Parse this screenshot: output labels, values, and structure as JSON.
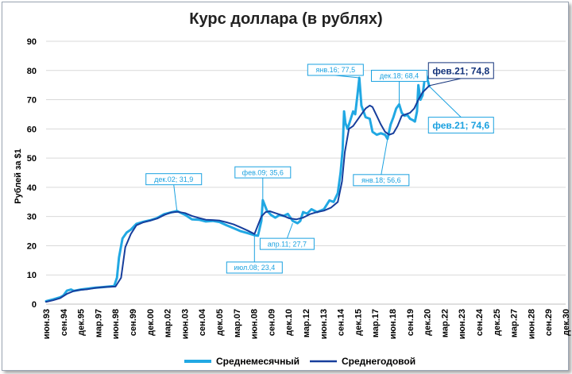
{
  "chart_data": {
    "type": "line",
    "title": "Курс доллара (в рублях)",
    "ylabel": "Рублей за $1",
    "xlabel": "",
    "ylim": [
      0,
      90
    ],
    "yticks": [
      0,
      10,
      20,
      30,
      40,
      50,
      60,
      70,
      80,
      90
    ],
    "xlim": [
      1993.5,
      2030.9
    ],
    "xtick_labels": [
      "июн.93",
      "сен.94",
      "дек.95",
      "мар.97",
      "июн.98",
      "сен.99",
      "дек.00",
      "мар.02",
      "июн.03",
      "сен.04",
      "дек.05",
      "мар.07",
      "июн.08",
      "сен.09",
      "дек.10",
      "мар.12",
      "июн.13",
      "сен.14",
      "дек.15",
      "мар.17",
      "июн.18",
      "сен.19",
      "дек.20",
      "мар.22",
      "июн.23",
      "сен.24",
      "дек.25",
      "мар.27",
      "июн.28",
      "сен.29",
      "дек.30"
    ],
    "grid": true,
    "legend": "bottom",
    "series": [
      {
        "name": "Среднемесячный",
        "color": "#21a8e3",
        "x": [
          1993.5,
          1994.0,
          1994.5,
          1994.75,
          1995.0,
          1995.3,
          1995.5,
          1996.0,
          1996.5,
          1997.0,
          1997.5,
          1998.0,
          1998.4,
          1998.6,
          1998.75,
          1999.0,
          1999.3,
          1999.6,
          2000.0,
          2000.5,
          2001.0,
          2001.5,
          2002.0,
          2002.5,
          2002.92,
          2003.5,
          2004.0,
          2004.5,
          2005.0,
          2005.5,
          2006.0,
          2006.5,
          2007.0,
          2007.5,
          2008.0,
          2008.5,
          2008.75,
          2009.0,
          2009.1,
          2009.4,
          2009.7,
          2010.0,
          2010.3,
          2010.6,
          2010.9,
          2011.25,
          2011.6,
          2011.8,
          2012.0,
          2012.3,
          2012.6,
          2013.0,
          2013.5,
          2013.9,
          2014.2,
          2014.5,
          2014.7,
          2014.85,
          2014.95,
          2015.05,
          2015.2,
          2015.4,
          2015.6,
          2015.75,
          2015.92,
          2016.05,
          2016.2,
          2016.5,
          2016.8,
          2017.0,
          2017.3,
          2017.6,
          2017.9,
          2018.08,
          2018.3,
          2018.5,
          2018.7,
          2018.92,
          2019.1,
          2019.3,
          2019.5,
          2019.7,
          2019.9,
          2020.05,
          2020.2,
          2020.3,
          2020.45,
          2020.6,
          2020.75,
          2020.9,
          2021.08
        ],
        "values": [
          1.0,
          1.6,
          2.3,
          3.0,
          4.6,
          5.0,
          4.5,
          5.0,
          5.3,
          5.6,
          5.8,
          6.0,
          6.2,
          9.0,
          16.0,
          22.5,
          24.5,
          25.5,
          27.5,
          28.2,
          28.7,
          29.5,
          30.8,
          31.4,
          31.9,
          30.6,
          29.0,
          28.9,
          28.3,
          28.5,
          28.1,
          27.0,
          26.0,
          25.0,
          24.3,
          23.6,
          23.4,
          28.5,
          35.6,
          32.0,
          30.5,
          29.6,
          30.5,
          30.2,
          30.9,
          28.5,
          27.7,
          28.5,
          31.5,
          31.0,
          32.5,
          31.5,
          32.5,
          35.5,
          35.0,
          38.0,
          45.0,
          53.0,
          66.0,
          62.0,
          60.0,
          63.0,
          66.0,
          65.0,
          72.0,
          77.5,
          68.0,
          64.0,
          63.5,
          59.0,
          58.0,
          58.5,
          58.0,
          56.6,
          61.5,
          64.0,
          67.0,
          68.4,
          65.5,
          64.5,
          64.8,
          63.5,
          63.0,
          62.5,
          66.0,
          75.0,
          70.0,
          71.5,
          77.0,
          78.0,
          74.6
        ]
      },
      {
        "name": "Среднегодовой",
        "color": "#173e9c",
        "x": [
          1993.5,
          1994.0,
          1994.5,
          1995.0,
          1995.5,
          1996.0,
          1996.5,
          1997.0,
          1997.5,
          1998.0,
          1998.5,
          1998.9,
          1999.2,
          1999.6,
          2000.0,
          2000.5,
          2001.0,
          2001.5,
          2002.0,
          2002.5,
          2003.0,
          2003.5,
          2004.0,
          2004.5,
          2005.0,
          2005.5,
          2006.0,
          2006.5,
          2007.0,
          2007.5,
          2008.0,
          2008.5,
          2009.0,
          2009.3,
          2009.6,
          2010.0,
          2010.5,
          2011.0,
          2011.5,
          2012.0,
          2012.5,
          2013.0,
          2013.5,
          2014.0,
          2014.5,
          2014.8,
          2015.0,
          2015.3,
          2015.6,
          2015.9,
          2016.2,
          2016.5,
          2016.8,
          2017.0,
          2017.3,
          2017.6,
          2017.9,
          2018.2,
          2018.5,
          2018.8,
          2019.1,
          2019.4,
          2019.7,
          2020.0,
          2020.3,
          2020.6,
          2021.08
        ],
        "values": [
          0.8,
          1.3,
          2.0,
          3.5,
          4.5,
          4.9,
          5.1,
          5.5,
          5.8,
          5.9,
          6.0,
          9.0,
          19.5,
          24.0,
          27.0,
          28.0,
          28.6,
          29.3,
          30.5,
          31.4,
          31.6,
          31.2,
          30.2,
          29.5,
          28.9,
          28.8,
          28.6,
          28.0,
          27.3,
          26.3,
          25.2,
          24.0,
          30.0,
          31.5,
          31.8,
          31.2,
          30.4,
          29.4,
          29.0,
          29.6,
          30.8,
          31.5,
          32.0,
          33.0,
          35.0,
          42.0,
          52.0,
          60.0,
          61.0,
          63.0,
          65.0,
          67.0,
          68.0,
          67.5,
          64.5,
          61.5,
          59.0,
          58.0,
          58.5,
          61.0,
          64.5,
          65.0,
          65.5,
          67.0,
          70.0,
          72.5,
          74.8
        ]
      }
    ],
    "annotations": [
      {
        "text": "дек.02; 31,9",
        "x": 2002.92,
        "y": 31.9,
        "series": "Среднемесячный"
      },
      {
        "text": "июл.08; 23,4",
        "x": 2008.5,
        "y": 23.4,
        "series": "Среднемесячный"
      },
      {
        "text": "фев.09; 35,6",
        "x": 2009.1,
        "y": 35.6,
        "series": "Среднемесячный"
      },
      {
        "text": "апр.11; 27,7",
        "x": 2011.25,
        "y": 27.7,
        "series": "Среднемесячный"
      },
      {
        "text": "янв.16; 77,5",
        "x": 2016.05,
        "y": 77.5,
        "series": "Среднемесячный"
      },
      {
        "text": "янв.18; 56,6",
        "x": 2018.08,
        "y": 56.6,
        "series": "Среднемесячный"
      },
      {
        "text": "дек.18; 68,4",
        "x": 2018.92,
        "y": 68.4,
        "series": "Среднемесячный"
      },
      {
        "text": "фев.21; 74,6",
        "x": 2021.08,
        "y": 74.6,
        "series": "Среднемесячный"
      },
      {
        "text": "фев.21; 74,8",
        "x": 2021.08,
        "y": 74.8,
        "series": "Среднегодовой"
      }
    ]
  }
}
